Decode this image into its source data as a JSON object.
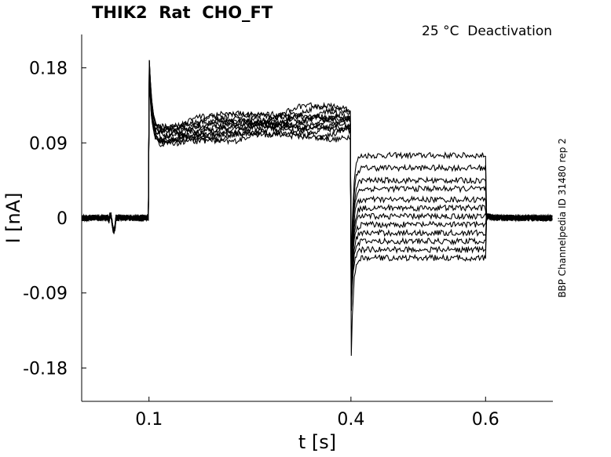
{
  "chart_data": {
    "type": "line",
    "title": "THIK2  Rat  CHO_FT",
    "annotation": "25 °C  Deactivation",
    "side_label": "BBP Channelpedia ID 31480 rep 2",
    "xlabel": "t [s]",
    "ylabel": "I [nA]",
    "xlim": [
      0.0,
      0.7
    ],
    "ylim": [
      -0.22,
      0.22
    ],
    "x_ticks": [
      0.1,
      0.4,
      0.6
    ],
    "x_tick_labels": [
      "0.1",
      "0.4",
      "0.6"
    ],
    "y_ticks": [
      -0.18,
      -0.09,
      0,
      0.09,
      0.18
    ],
    "y_tick_labels": [
      "-0.18",
      "-0.09",
      "0",
      "0.09",
      "0.18"
    ],
    "grid": false,
    "color": "#000000",
    "protocol": {
      "holding_end": 0.1,
      "prepulse_end": 0.4,
      "test_end": 0.6,
      "tail_end": 0.7
    },
    "series": [
      {
        "prepulse_current": 0.105,
        "test_current": 0.075
      },
      {
        "prepulse_current": 0.108,
        "test_current": 0.06
      },
      {
        "prepulse_current": 0.11,
        "test_current": 0.045
      },
      {
        "prepulse_current": 0.112,
        "test_current": 0.035
      },
      {
        "prepulse_current": 0.114,
        "test_current": 0.022
      },
      {
        "prepulse_current": 0.116,
        "test_current": 0.012
      },
      {
        "prepulse_current": 0.118,
        "test_current": 0.002
      },
      {
        "prepulse_current": 0.12,
        "test_current": -0.008
      },
      {
        "prepulse_current": 0.122,
        "test_current": -0.018
      },
      {
        "prepulse_current": 0.125,
        "test_current": -0.028
      },
      {
        "prepulse_current": 0.128,
        "test_current": -0.038
      },
      {
        "prepulse_current": 0.13,
        "test_current": -0.048
      }
    ],
    "peak_current_at_step_on": 0.186,
    "min_current_at_test_onset": -0.187
  }
}
